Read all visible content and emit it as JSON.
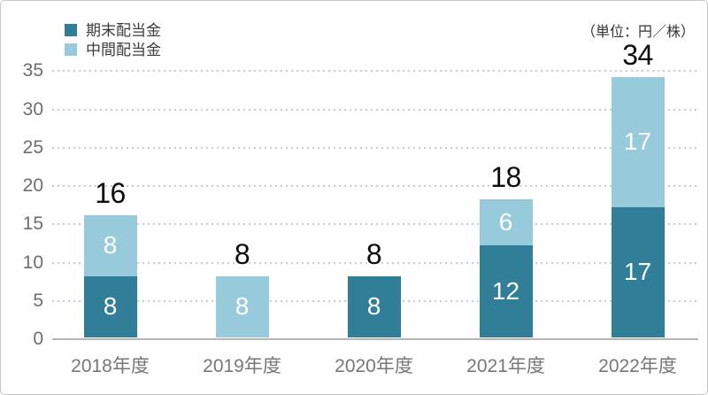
{
  "unit_label": "（単位：円／株）",
  "legend": [
    {
      "label": "期末配当金",
      "color": "#317e98"
    },
    {
      "label": "中間配当金",
      "color": "#97cbdc"
    }
  ],
  "chart_data": {
    "type": "bar",
    "stacked": true,
    "title": "",
    "xlabel": "",
    "ylabel": "",
    "unit": "円／株",
    "categories": [
      "2018年度",
      "2019年度",
      "2020年度",
      "2021年度",
      "2022年度"
    ],
    "series": [
      {
        "name": "期末配当金",
        "color": "#317e98",
        "values": [
          8,
          0,
          8,
          12,
          17
        ]
      },
      {
        "name": "中間配当金",
        "color": "#97cbdc",
        "values": [
          8,
          8,
          0,
          6,
          17
        ]
      }
    ],
    "totals": [
      16,
      8,
      8,
      18,
      34
    ],
    "ylim": [
      0,
      35
    ],
    "yticks": [
      0,
      5,
      10,
      15,
      20,
      25,
      30,
      35
    ],
    "grid": "dotted-horizontal",
    "legend_position": "top-left"
  },
  "colors": {
    "grid": "#cbcbcb",
    "baseline": "#b5b5b5",
    "y_axis_text": "#6e6e6e",
    "x_axis_text": "#777777",
    "total_text": "#0d0d0d",
    "segment_text": "#ffffff",
    "card_border": "#c6c6c6"
  }
}
